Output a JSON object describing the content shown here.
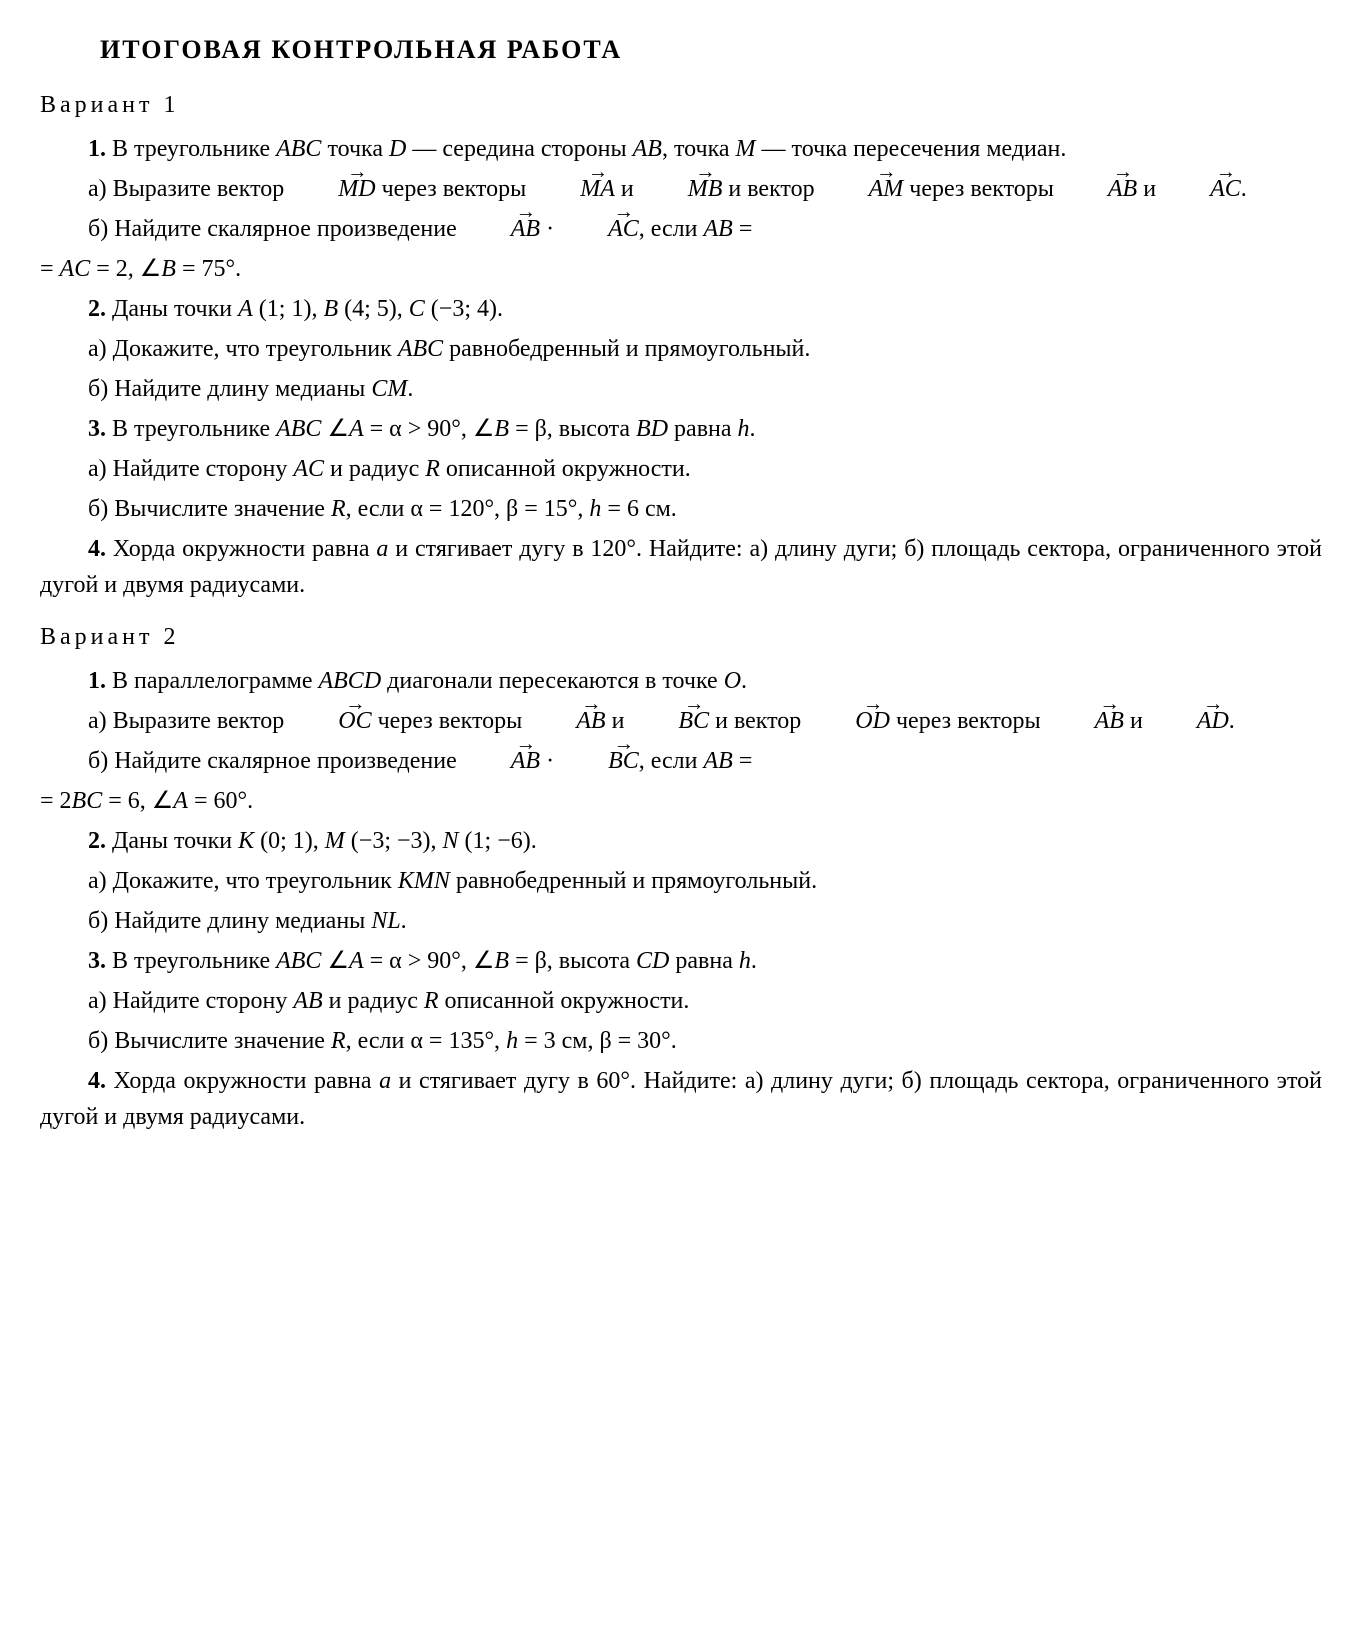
{
  "title": "ИТОГОВАЯ КОНТРОЛЬНАЯ РАБОТА",
  "variant1_label": "Вариант 1",
  "variant2_label": "Вариант 2",
  "v1": {
    "p1": {
      "num": "1.",
      "t1": " В треугольнике ",
      "abc": "ABC",
      "t2": " точка ",
      "d": "D",
      "t3": " — середина стороны ",
      "ab": "AB",
      "t4": ", точка ",
      "m": "M",
      "t5": " — точка пересечения медиан."
    },
    "p1a": {
      "t1": "а) Выразите вектор ",
      "md": "MD",
      "t2": " через векторы ",
      "ma": "MA",
      "t3": " и ",
      "mb": "MB",
      "t4": " и вектор ",
      "am": "AM",
      "t5": " через векторы ",
      "ab": "AB",
      "t6": " и ",
      "ac": "AC",
      "t7": "."
    },
    "p1b": {
      "t1": "б) Найдите скалярное произведение ",
      "ab": "AB",
      "dot": " · ",
      "ac": "AC",
      "t2": ", если ",
      "abv": "AB",
      "eq": " = ",
      "eq2": "= ",
      "acv": "AC",
      "t3": " = 2,  ∠",
      "b": "B",
      "t4": " = 75°."
    },
    "p2": {
      "num": "2.",
      "t1": " Даны точки ",
      "a": "A",
      "t2": " (1; 1), ",
      "b": "B",
      "t3": " (4; 5), ",
      "c": "C",
      "t4": " (−3; 4)."
    },
    "p2a": {
      "t1": "а) Докажите, что треугольник ",
      "abc": "ABC",
      "t2": " равнобедренный и прямоугольный."
    },
    "p2b": {
      "t1": "б) Найдите длину медианы ",
      "cm": "CM",
      "t2": "."
    },
    "p3": {
      "num": "3.",
      "t1": " В треугольнике ",
      "abc": "ABC",
      "t2": " ∠",
      "a": "A",
      "t3": " = α > 90°, ∠",
      "b": "B",
      "t4": " = β, высота ",
      "bd": "BD",
      "t5": " равна ",
      "h": "h",
      "t6": "."
    },
    "p3a": {
      "t1": "а) Найдите сторону ",
      "ac": "AC",
      "t2": " и радиус ",
      "r": "R",
      "t3": " описанной окружности."
    },
    "p3b": {
      "t1": "б) Вычислите значение ",
      "r": "R",
      "t2": ", если α = 120°, β = 15°, ",
      "h": "h",
      "t3": " = 6 см."
    },
    "p4": {
      "num": "4.",
      "t1": " Хорда окружности равна ",
      "a": "a",
      "t2": " и стягивает дугу в 120°. Найдите: а) длину дуги; б) площадь сектора, ограниченного этой дугой и двумя радиусами."
    }
  },
  "v2": {
    "p1": {
      "num": "1.",
      "t1": " В параллелограмме ",
      "abcd": "ABCD",
      "t2": " диагонали пересекаются в точке ",
      "o": "O",
      "t3": "."
    },
    "p1a": {
      "t1": "а) Выразите вектор ",
      "oc": "OC",
      "t2": " через векторы ",
      "ab": "AB",
      "t3": " и ",
      "bc": "BC",
      "t4": " и вектор ",
      "od": "OD",
      "t5": " через векторы ",
      "ab2": "AB",
      "t6": " и ",
      "ad": "AD",
      "t7": "."
    },
    "p1b": {
      "t1": "б) Найдите скалярное произведение ",
      "ab": "AB",
      "dot": " · ",
      "bc": "BC",
      "t2": ", если ",
      "abv": "AB",
      "eq": " = ",
      "eq2": "= 2",
      "bcv": "BC",
      "t3": " = 6,  ∠",
      "a": "A",
      "t4": " = 60°."
    },
    "p2": {
      "num": "2.",
      "t1": " Даны точки ",
      "k": "K",
      "t2": " (0; 1), ",
      "m": "M",
      "t3": " (−3; −3), ",
      "n": "N",
      "t4": " (1; −6)."
    },
    "p2a": {
      "t1": "а) Докажите, что треугольник ",
      "kmn": "KMN",
      "t2": " равнобедренный и прямоугольный."
    },
    "p2b": {
      "t1": "б) Найдите длину медианы ",
      "nl": "NL",
      "t2": "."
    },
    "p3": {
      "num": "3.",
      "t1": " В треугольнике ",
      "abc": "ABC",
      "t2": " ∠",
      "a": "A",
      "t3": " = α > 90°, ∠",
      "b": "B",
      "t4": " = β, высота ",
      "cd": "CD",
      "t5": " равна ",
      "h": "h",
      "t6": "."
    },
    "p3a": {
      "t1": "а) Найдите сторону ",
      "ab": "AB",
      "t2": " и радиус ",
      "r": "R",
      "t3": " описанной окружности."
    },
    "p3b": {
      "t1": "б) Вычислите значение ",
      "r": "R",
      "t2": ", если α = 135°, ",
      "h": "h",
      "t3": " = 3 см, β = 30°."
    },
    "p4": {
      "num": "4.",
      "t1": " Хорда окружности равна ",
      "a": "a",
      "t2": " и стягивает дугу в 60°. Найдите: а) длину дуги; б) площадь сектора, ограниченного этой дугой и двумя радиусами."
    }
  }
}
